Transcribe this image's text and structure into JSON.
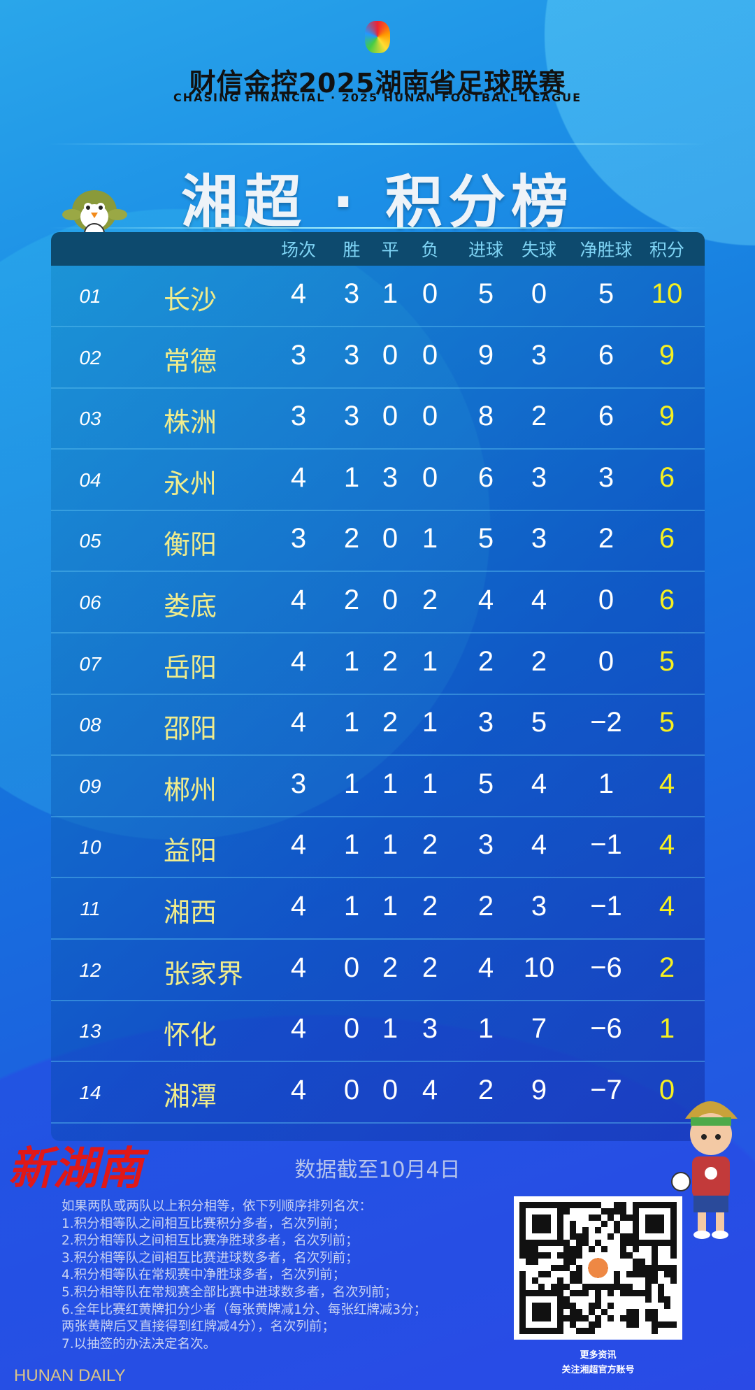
{
  "header": {
    "title": "财信金控2025湖南省足球联赛",
    "subtitle": "CHASING FINANCIAL · 2025 HUNAN FOOTBALL LEAGUE",
    "banner": "湘超 · 积分榜"
  },
  "table": {
    "columns": [
      "场次",
      "胜",
      "平",
      "负",
      "进球",
      "失球",
      "净胜球",
      "积分"
    ],
    "rows": [
      {
        "rank": "01",
        "team": "长沙",
        "values": [
          "4",
          "3",
          "1",
          "0",
          "5",
          "0",
          "5",
          "10"
        ]
      },
      {
        "rank": "02",
        "team": "常德",
        "values": [
          "3",
          "3",
          "0",
          "0",
          "9",
          "3",
          "6",
          "9"
        ]
      },
      {
        "rank": "03",
        "team": "株洲",
        "values": [
          "3",
          "3",
          "0",
          "0",
          "8",
          "2",
          "6",
          "9"
        ]
      },
      {
        "rank": "04",
        "team": "永州",
        "values": [
          "4",
          "1",
          "3",
          "0",
          "6",
          "3",
          "3",
          "6"
        ]
      },
      {
        "rank": "05",
        "team": "衡阳",
        "values": [
          "3",
          "2",
          "0",
          "1",
          "5",
          "3",
          "2",
          "6"
        ]
      },
      {
        "rank": "06",
        "team": "娄底",
        "values": [
          "4",
          "2",
          "0",
          "2",
          "4",
          "4",
          "0",
          "6"
        ]
      },
      {
        "rank": "07",
        "team": "岳阳",
        "values": [
          "4",
          "1",
          "2",
          "1",
          "2",
          "2",
          "0",
          "5"
        ]
      },
      {
        "rank": "08",
        "team": "邵阳",
        "values": [
          "4",
          "1",
          "2",
          "1",
          "3",
          "5",
          "−2",
          "5"
        ]
      },
      {
        "rank": "09",
        "team": "郴州",
        "values": [
          "3",
          "1",
          "1",
          "1",
          "5",
          "4",
          "1",
          "4"
        ]
      },
      {
        "rank": "10",
        "team": "益阳",
        "values": [
          "4",
          "1",
          "1",
          "2",
          "3",
          "4",
          "−1",
          "4"
        ]
      },
      {
        "rank": "11",
        "team": "湘西",
        "values": [
          "4",
          "1",
          "1",
          "2",
          "2",
          "3",
          "−1",
          "4"
        ]
      },
      {
        "rank": "12",
        "team": "张家界",
        "values": [
          "4",
          "0",
          "2",
          "2",
          "4",
          "10",
          "−6",
          "2"
        ]
      },
      {
        "rank": "13",
        "team": "怀化",
        "values": [
          "4",
          "0",
          "1",
          "3",
          "1",
          "7",
          "−6",
          "1"
        ]
      },
      {
        "rank": "14",
        "team": "湘潭",
        "values": [
          "4",
          "0",
          "0",
          "4",
          "2",
          "9",
          "−7",
          "0"
        ]
      }
    ]
  },
  "footer": {
    "date": "数据截至10月4日",
    "rules": [
      "如果两队或两队以上积分相等，依下列顺序排列名次：",
      "1.积分相等队之间相互比赛积分多者，名次列前；",
      "2.积分相等队之间相互比赛净胜球多者，名次列前；",
      "3.积分相等队之间相互比赛进球数多者，名次列前；",
      "4.积分相等队在常规赛中净胜球多者，名次列前；",
      "5.积分相等队在常规赛全部比赛中进球数多者，名次列前；",
      "6.全年比赛红黄牌扣分少者（每张黄牌减1分、每张红牌减3分；",
      "两张黄牌后又直接得到红牌减4分），名次列前；",
      "7.以抽签的办法决定名次。"
    ],
    "qr_caption": [
      "更多资讯",
      "关注湘超官方账号"
    ]
  },
  "watermark": {
    "cn": "新湖南",
    "en": "HUNAN DAILY"
  },
  "colors": {
    "team": "#f0ec8c",
    "points": "#f6f020",
    "header_bg": "#0d4a6e",
    "header_text": "#7fd4f5"
  }
}
